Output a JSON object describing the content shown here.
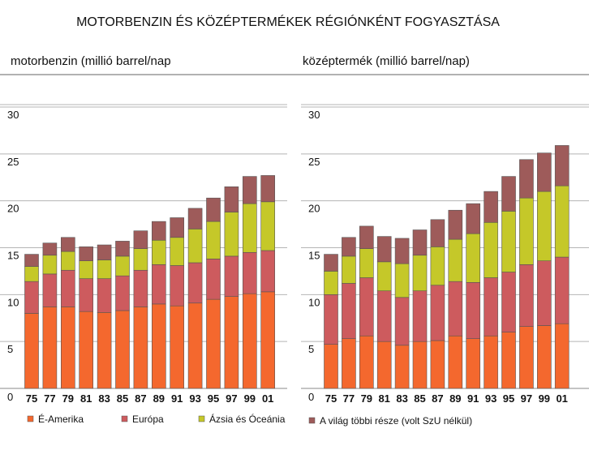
{
  "page_title": "MOTORBENZIN ÉS KÖZÉPTERMÉKEK RÉGIÓNKÉNT FOGYASZTÁSA",
  "colors": {
    "north_america": "#f4682e",
    "europe": "#cd5b5e",
    "asia_oceania": "#c5c829",
    "rest_of_world": "#9e5b5a",
    "grid": "#b5b5b5",
    "rule": "#666666"
  },
  "chart_data": [
    {
      "type": "bar",
      "stacked": true,
      "title": "motorbenzin (millió barrel/nap",
      "categories": [
        "75",
        "77",
        "79",
        "81",
        "83",
        "85",
        "87",
        "89",
        "91",
        "93",
        "95",
        "97",
        "99",
        "01"
      ],
      "ylim": [
        0,
        30
      ],
      "yticks": [
        "0",
        "5",
        "10",
        "15",
        "20",
        "25",
        "30"
      ],
      "grid": true,
      "series": [
        {
          "name": "É-Amerika",
          "values": [
            8.0,
            8.7,
            8.7,
            8.2,
            8.1,
            8.3,
            8.7,
            9.0,
            8.8,
            9.1,
            9.5,
            9.8,
            10.1,
            10.3
          ]
        },
        {
          "name": "Európa",
          "values": [
            3.4,
            3.5,
            3.9,
            3.5,
            3.6,
            3.7,
            3.9,
            4.2,
            4.3,
            4.3,
            4.3,
            4.3,
            4.4,
            4.4
          ]
        },
        {
          "name": "Ázsia és Óceánia",
          "values": [
            1.6,
            2.0,
            2.0,
            1.9,
            2.0,
            2.1,
            2.3,
            2.6,
            3.0,
            3.6,
            4.0,
            4.7,
            5.2,
            5.2
          ]
        },
        {
          "name": "A világ többi része (volt SzU nélkül)",
          "values": [
            1.3,
            1.3,
            1.5,
            1.5,
            1.6,
            1.6,
            1.9,
            2.0,
            2.1,
            2.2,
            2.5,
            2.7,
            2.9,
            2.8
          ]
        }
      ]
    },
    {
      "type": "bar",
      "stacked": true,
      "title": "középtermék (millió barrel/nap)",
      "categories": [
        "75",
        "77",
        "79",
        "81",
        "83",
        "85",
        "87",
        "89",
        "91",
        "93",
        "95",
        "97",
        "99",
        "01"
      ],
      "ylim": [
        0,
        30
      ],
      "yticks": [
        "0",
        "5",
        "10",
        "15",
        "20",
        "25",
        "30"
      ],
      "grid": true,
      "series": [
        {
          "name": "É-Amerika",
          "values": [
            4.7,
            5.3,
            5.6,
            5.0,
            4.6,
            5.0,
            5.1,
            5.6,
            5.3,
            5.6,
            6.0,
            6.6,
            6.7,
            6.9
          ]
        },
        {
          "name": "Európa",
          "values": [
            5.3,
            5.9,
            6.2,
            5.4,
            5.1,
            5.4,
            5.9,
            5.8,
            6.0,
            6.2,
            6.4,
            6.6,
            6.9,
            7.1
          ]
        },
        {
          "name": "Ázsia és Óceánia",
          "values": [
            2.5,
            2.9,
            3.1,
            3.1,
            3.6,
            3.8,
            4.1,
            4.5,
            5.2,
            5.9,
            6.5,
            7.1,
            7.4,
            7.6
          ]
        },
        {
          "name": "A világ többi része (volt SzU nélkül)",
          "values": [
            1.8,
            2.0,
            2.4,
            2.7,
            2.7,
            2.7,
            2.9,
            3.1,
            3.2,
            3.3,
            3.7,
            4.1,
            4.1,
            4.3
          ]
        }
      ]
    }
  ],
  "legend": [
    {
      "label": "É-Amerika",
      "color_key": "north_america"
    },
    {
      "label": "Európa",
      "color_key": "europe"
    },
    {
      "label": "Ázsia és Óceánia",
      "color_key": "asia_oceania"
    },
    {
      "label": "A világ többi része (volt SzU nélkül)",
      "color_key": "rest_of_world"
    }
  ]
}
